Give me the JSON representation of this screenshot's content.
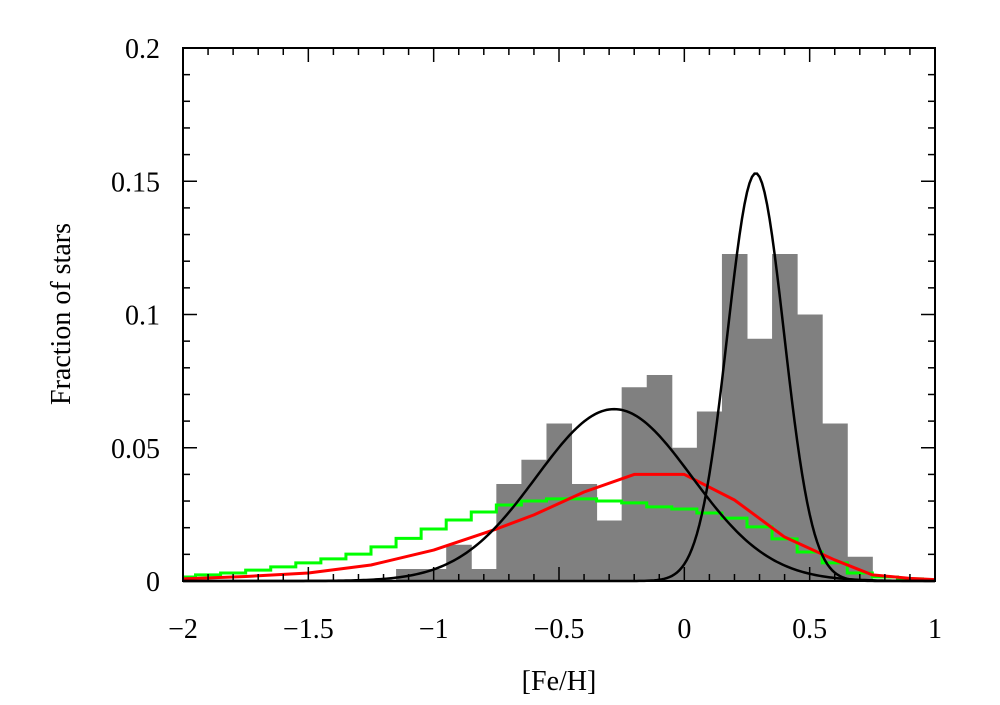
{
  "chart_data": {
    "type": "histogram-with-lines",
    "title": "",
    "xlabel": "[Fe/H]",
    "ylabel": "Fraction of stars",
    "xlim": [
      -2,
      1
    ],
    "ylim": [
      0,
      0.2
    ],
    "xticks": [
      -2,
      -1.5,
      -1,
      -0.5,
      0,
      0.5,
      1
    ],
    "xtick_labels": [
      "−2",
      "−1.5",
      "−1",
      "−0.5",
      "0",
      "0.5",
      "1"
    ],
    "yticks": [
      0,
      0.05,
      0.1,
      0.15,
      0.2
    ],
    "ytick_labels": [
      "0",
      "0.05",
      "0.1",
      "0.15",
      "0.2"
    ],
    "grid": false,
    "histogram": {
      "color": "#808080",
      "bin_width": 0.1,
      "bin_centers": [
        -1.1,
        -1.0,
        -0.9,
        -0.8,
        -0.7,
        -0.6,
        -0.5,
        -0.4,
        -0.3,
        -0.2,
        -0.1,
        0.0,
        0.1,
        0.2,
        0.3,
        0.4,
        0.5,
        0.6,
        0.7
      ],
      "values": [
        0.0045,
        0.0045,
        0.0136,
        0.0045,
        0.0364,
        0.0455,
        0.0591,
        0.0364,
        0.0227,
        0.0727,
        0.0773,
        0.05,
        0.0636,
        0.1227,
        0.0909,
        0.1227,
        0.1,
        0.0591,
        0.0091
      ]
    },
    "green_step": {
      "color": "#00ff00",
      "bin_width": 0.1,
      "bin_centers": [
        -2.0,
        -1.9,
        -1.8,
        -1.7,
        -1.6,
        -1.5,
        -1.4,
        -1.3,
        -1.2,
        -1.1,
        -1.0,
        -0.9,
        -0.8,
        -0.7,
        -0.6,
        -0.5,
        -0.4,
        -0.3,
        -0.2,
        -0.1,
        0.0,
        0.1,
        0.2,
        0.3,
        0.4,
        0.5,
        0.6,
        0.7,
        0.8,
        0.9,
        1.0
      ],
      "values": [
        0.0015,
        0.0023,
        0.003,
        0.0041,
        0.0053,
        0.0068,
        0.0083,
        0.0101,
        0.0128,
        0.016,
        0.0195,
        0.0229,
        0.0259,
        0.0285,
        0.03,
        0.0308,
        0.0308,
        0.03,
        0.0293,
        0.0278,
        0.027,
        0.0255,
        0.0236,
        0.0203,
        0.0158,
        0.0109,
        0.0068,
        0.003,
        0.0015,
        0.0008,
        0.0004
      ]
    },
    "red_line": {
      "color": "#ff0000",
      "x": [
        -2.0,
        -1.75,
        -1.5,
        -1.25,
        -1.0,
        -0.75,
        -0.6,
        -0.4,
        -0.2,
        0.0,
        0.2,
        0.4,
        0.6,
        0.75,
        0.9,
        1.0
      ],
      "y": [
        0.0008,
        0.0017,
        0.003,
        0.006,
        0.0116,
        0.0195,
        0.0248,
        0.0334,
        0.04,
        0.04,
        0.0304,
        0.0165,
        0.0079,
        0.0023,
        0.001,
        0.0005
      ]
    },
    "black_gaussians": [
      {
        "color": "#000000",
        "mean": -0.28,
        "sigma": 0.31,
        "peak": 0.0645
      },
      {
        "color": "#000000",
        "mean": 0.285,
        "sigma": 0.113,
        "peak": 0.153
      }
    ]
  }
}
